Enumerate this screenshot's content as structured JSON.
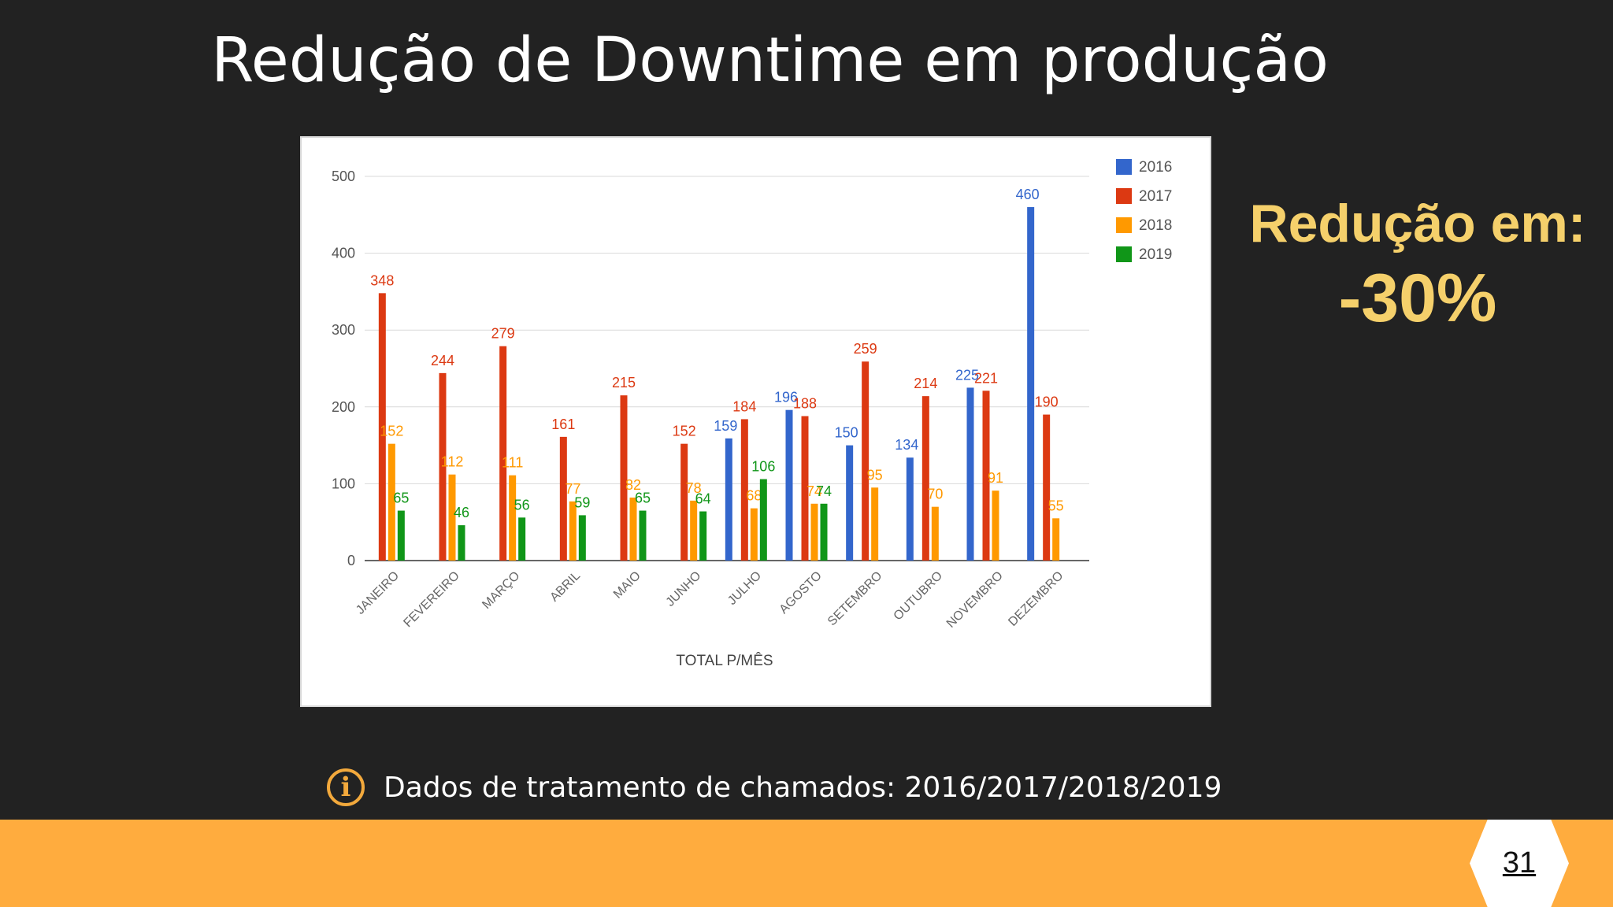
{
  "slide": {
    "title": "Redução de Downtime em produção",
    "reduction_label": "Redução em:",
    "reduction_value": "-30%",
    "info_text": "Dados de tratamento de chamados: 2016/2017/2018/2019",
    "page_number": "31"
  },
  "icons": {
    "info": "info-circle-icon"
  },
  "colors": {
    "background": "#222222",
    "accent": "#ffac3e",
    "highlight": "#f5d06b"
  },
  "chart_data": {
    "type": "bar",
    "title": "",
    "xlabel": "TOTAL P/MÊS",
    "ylabel": "",
    "ylim": [
      0,
      500
    ],
    "yticks": [
      0,
      100,
      200,
      300,
      400,
      500
    ],
    "grid": true,
    "legend_position": "right",
    "categories": [
      "JANEIRO",
      "FEVEREIRO",
      "MARÇO",
      "ABRIL",
      "MAIO",
      "JUNHO",
      "JULHO",
      "AGOSTO",
      "SETEMBRO",
      "OUTUBRO",
      "NOVEMBRO",
      "DEZEMBRO"
    ],
    "series": [
      {
        "name": "2016",
        "color": "#3366cc",
        "values": [
          null,
          null,
          null,
          null,
          null,
          null,
          159,
          196,
          150,
          134,
          225,
          460
        ]
      },
      {
        "name": "2017",
        "color": "#dc3912",
        "values": [
          348,
          244,
          279,
          161,
          215,
          152,
          184,
          188,
          259,
          214,
          221,
          190
        ]
      },
      {
        "name": "2018",
        "color": "#ff9900",
        "values": [
          152,
          112,
          111,
          77,
          82,
          78,
          68,
          74,
          95,
          70,
          91,
          55
        ]
      },
      {
        "name": "2019",
        "color": "#109618",
        "values": [
          65,
          46,
          56,
          59,
          65,
          64,
          106,
          74,
          null,
          null,
          null,
          null
        ]
      }
    ]
  }
}
